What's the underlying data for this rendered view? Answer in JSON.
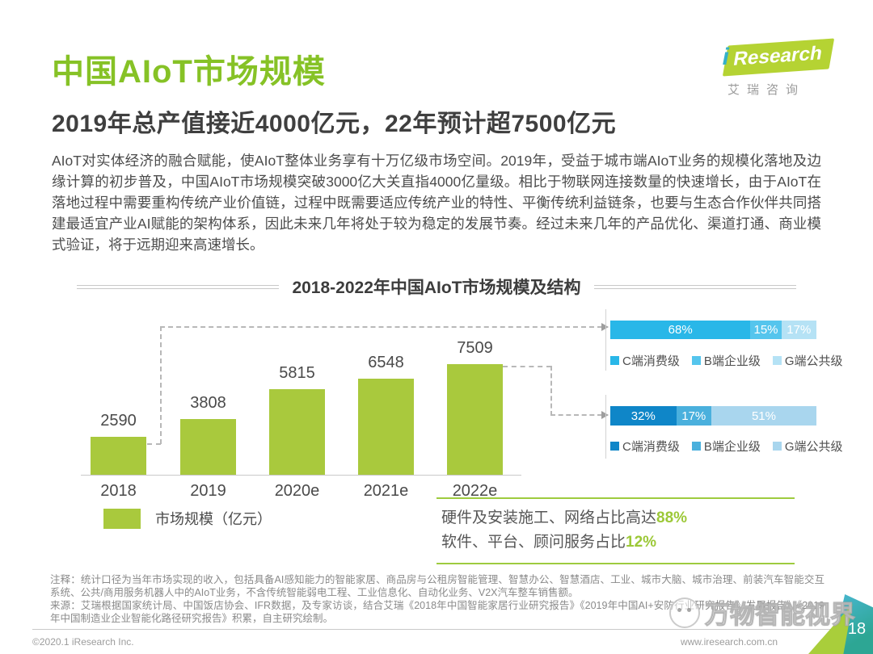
{
  "header": {
    "title": "中国AIoT市场规模",
    "subtitle": "2019年总产值接近4000亿元，22年预计超7500亿元",
    "logo": {
      "i": "i",
      "brand": "Research",
      "subtext": "艾瑞咨询"
    }
  },
  "intro": "AIoT对实体经济的融合赋能，使AIoT整体业务享有十万亿级市场空间。2019年，受益于城市端AIoT业务的规模化落地及边缘计算的初步普及，中国AIoT市场规模突破3000亿大关直指4000亿量级。相比于物联网连接数量的快速增长，由于AIoT在落地过程中需要重构传统产业价值链，过程中既需要适应传统产业的特性、平衡传统利益链条，也要与生态合作伙伴共同搭建最适宜产业AI赋能的架构体系，因此未来几年将处于较为稳定的发展节奏。经过未来几年的产品优化、渠道打通、商业模式验证，将于远期迎来高速增长。",
  "chart_data": {
    "type": "bar",
    "title": "2018-2022年中国AIoT市场规模及结构",
    "categories": [
      "2018",
      "2019",
      "2020e",
      "2021e",
      "2022e"
    ],
    "values": [
      2590,
      3808,
      5815,
      6548,
      7509
    ],
    "legend_label": "市场规模（亿元）",
    "bar_color": "#a9c93d",
    "ylim": [
      0,
      8000
    ],
    "grid": false,
    "stacked_bars": [
      {
        "year_ref": "2018",
        "segments": [
          {
            "label": "C端消费级",
            "value": 68,
            "color": "#29b7e8"
          },
          {
            "label": "B端企业级",
            "value": 15,
            "color": "#55c5ed"
          },
          {
            "label": "G端公共级",
            "value": 17,
            "color": "#b5e2f5"
          }
        ]
      },
      {
        "year_ref": "2022e",
        "segments": [
          {
            "label": "C端消费级",
            "value": 32,
            "color": "#0f86c8"
          },
          {
            "label": "B端企业级",
            "value": 17,
            "color": "#4ab0dd"
          },
          {
            "label": "G端公共级",
            "value": 51,
            "color": "#a9d6ee"
          }
        ]
      }
    ]
  },
  "highlight": {
    "lines": [
      {
        "prefix": "硬件及安装施工、网络占比高达",
        "em": "88%"
      },
      {
        "prefix": "软件、平台、顾问服务占比",
        "em": "12%"
      }
    ]
  },
  "notes": {
    "note": "注释：统计口径为当年市场实现的收入，包括具备AI感知能力的智能家居、商品房与公租房智能管理、智慧办公、智慧酒店、工业、城市大脑、城市治理、前装汽车智能交互系统、公共/商用服务机器人中的AIoT业务，不含传统智能弱电工程、工业信息化、自动化业务、V2X汽车整车销售额。",
    "source": "来源：艾瑞根据国家统计局、中国饭店协会、IFR数据，及专家访谈，结合艾瑞《2018年中国智能家居行业研究报告》《2019年中国AI+安防行业研究报告》发展报告》《2019年中国制造业企业智能化路径研究报告》积累，自主研究绘制。"
  },
  "watermark": {
    "text": "万物智能视界"
  },
  "footer": {
    "copyright": "©2020.1 iResearch Inc.",
    "website": "www.iresearch.com.cn",
    "page": "18"
  }
}
